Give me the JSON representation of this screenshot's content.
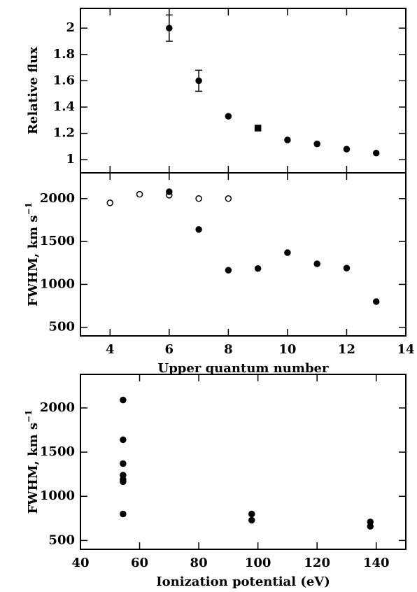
{
  "chart_data": [
    {
      "type": "scatter",
      "ylabel": {
        "text": "Relative flux"
      },
      "xlim": [
        3,
        14
      ],
      "xticks": [
        4,
        6,
        8,
        10,
        12,
        14
      ],
      "xtick_labels": false,
      "ylim": [
        0.9,
        2.15
      ],
      "yticks": [
        1,
        1.2,
        1.4,
        1.6,
        1.8,
        2
      ],
      "series": [
        {
          "x": [
            6,
            7,
            8,
            9,
            10,
            11,
            12,
            13
          ],
          "values": [
            2.0,
            1.6,
            1.33,
            1.24,
            1.15,
            1.12,
            1.08,
            1.05
          ],
          "errors": [
            0.1,
            0.08,
            null,
            null,
            null,
            null,
            null,
            null
          ],
          "markers": [
            "circle",
            "circle",
            "circle",
            "square",
            "circle",
            "circle",
            "circle",
            "circle"
          ],
          "filled": true,
          "color": "#000000"
        }
      ]
    },
    {
      "type": "scatter",
      "xlabel": "Upper quantum number",
      "ylabel": {
        "text": "FWHM, km s",
        "sup": "−1"
      },
      "xlim": [
        3,
        14
      ],
      "xticks": [
        4,
        6,
        8,
        10,
        12,
        14
      ],
      "ylim": [
        400,
        2300
      ],
      "yticks": [
        500,
        1000,
        1500,
        2000
      ],
      "series": [
        {
          "x": [
            4,
            5,
            6,
            7,
            8
          ],
          "values": [
            1950,
            2050,
            2040,
            2000,
            2000
          ],
          "filled": false,
          "color": "#000000"
        },
        {
          "x": [
            6,
            7,
            8,
            9,
            10,
            11,
            12,
            13
          ],
          "values": [
            2080,
            1640,
            1165,
            1185,
            1370,
            1240,
            1190,
            800
          ],
          "filled": true,
          "color": "#000000"
        }
      ]
    },
    {
      "type": "scatter",
      "xlabel": "Ionization potential (eV)",
      "ylabel": {
        "text": "FWHM, km s",
        "sup": "−1"
      },
      "xlim": [
        40,
        150
      ],
      "xticks": [
        40,
        60,
        80,
        100,
        120,
        140
      ],
      "ylim": [
        400,
        2380
      ],
      "yticks": [
        500,
        1000,
        1500,
        2000
      ],
      "series": [
        {
          "x": [
            54.4,
            54.4,
            54.4,
            54.4,
            54.4,
            54.4,
            54.4,
            97.9,
            97.9,
            138,
            138
          ],
          "values": [
            2090,
            1640,
            1370,
            1240,
            1190,
            1165,
            800,
            800,
            730,
            710,
            660
          ],
          "filled": true,
          "color": "#000000"
        }
      ]
    }
  ]
}
